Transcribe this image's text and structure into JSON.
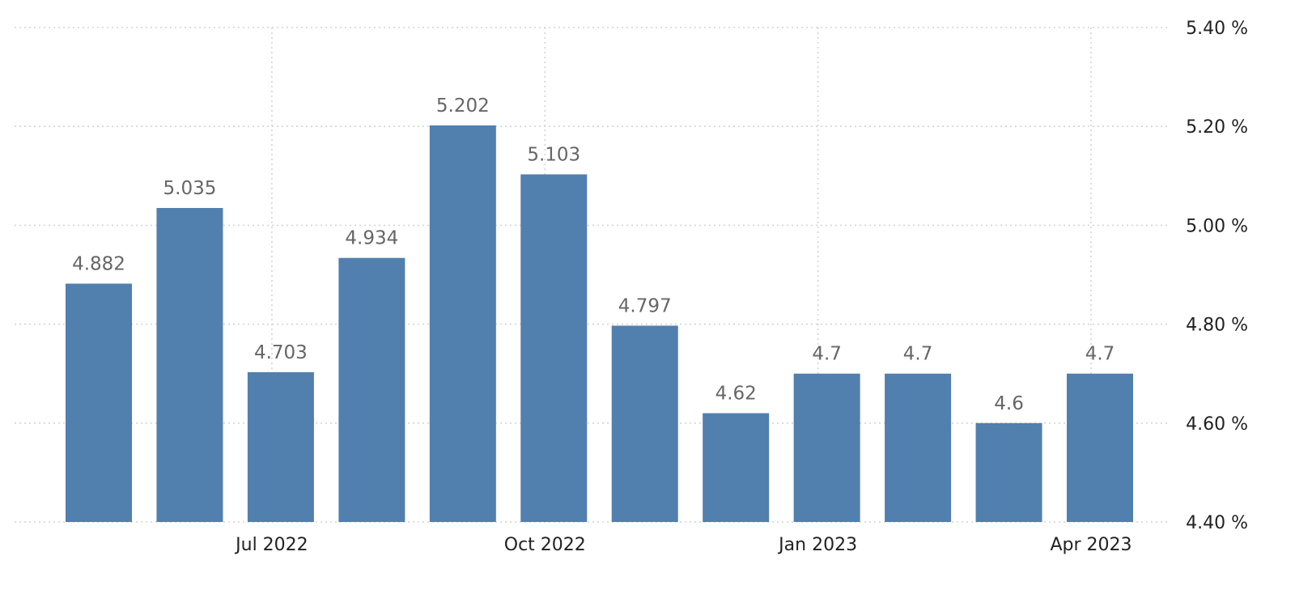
{
  "chart_data": {
    "type": "bar",
    "title": "",
    "xlabel": "",
    "ylabel": "",
    "series": [
      {
        "color": "#517fae",
        "values": [
          4.882,
          5.035,
          4.703,
          4.934,
          5.202,
          5.103,
          4.797,
          4.62,
          4.7,
          4.7,
          4.6,
          4.7
        ],
        "data_labels": [
          "4.882",
          "5.035",
          "4.703",
          "4.934",
          "5.202",
          "5.103",
          "4.797",
          "4.62",
          "4.7",
          "4.7",
          "4.6",
          "4.7"
        ]
      }
    ],
    "categories": [
      "2022-05",
      "2022-06",
      "2022-07",
      "2022-08",
      "2022-09",
      "2022-10",
      "2022-11",
      "2022-12",
      "2023-01",
      "2023-02",
      "2023-03",
      "2023-04"
    ],
    "ylim": [
      4.4,
      5.4
    ],
    "y_ticks": [
      {
        "value": 5.4,
        "label": "5.40 %"
      },
      {
        "value": 5.2,
        "label": "5.20 %"
      },
      {
        "value": 5.0,
        "label": "5.00 %"
      },
      {
        "value": 4.8,
        "label": "4.80 %"
      },
      {
        "value": 4.6,
        "label": "4.60 %"
      },
      {
        "value": 4.4,
        "label": "4.40 %"
      }
    ],
    "x_ticks": [
      {
        "date": "2022-07",
        "label": "Jul 2022"
      },
      {
        "date": "2022-10",
        "label": "Oct 2022"
      },
      {
        "date": "2023-01",
        "label": "Jan 2023"
      },
      {
        "date": "2023-04",
        "label": "Apr 2023"
      }
    ],
    "y_axis_side": "right",
    "grid": true,
    "legend": "none"
  }
}
